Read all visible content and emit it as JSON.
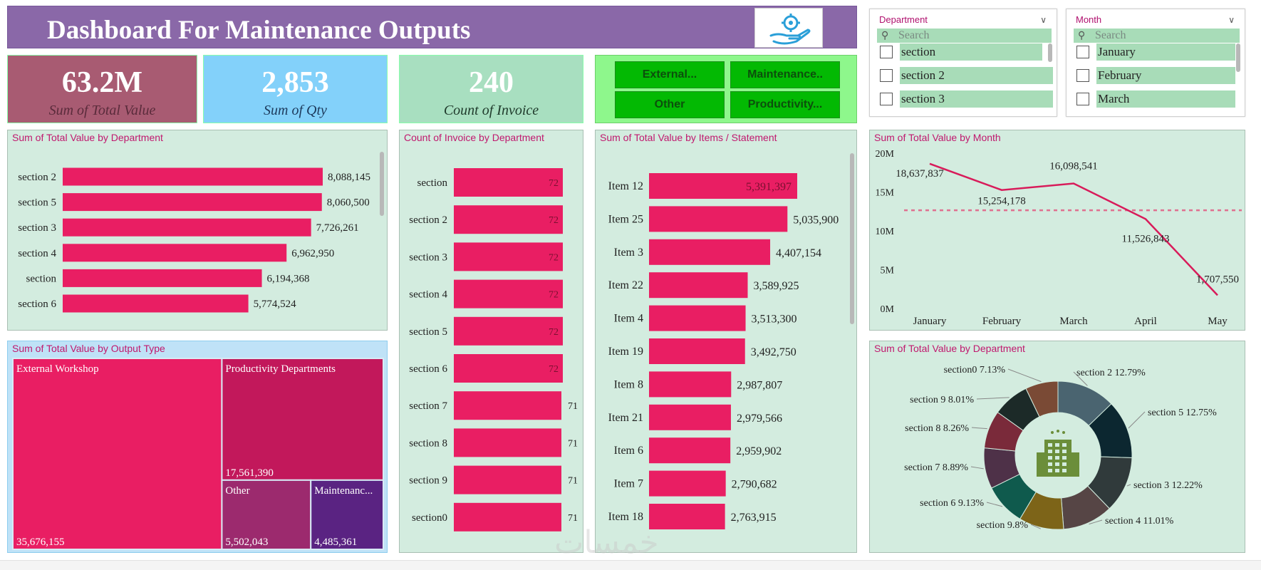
{
  "header": {
    "title": "Dashboard For Maintenance Outputs",
    "logo": "hand-gear-icon"
  },
  "kpis": [
    {
      "value": "63.2M",
      "label": "Sum of Total Value",
      "bg": "#a85b72",
      "label_color": "#5a2b3b"
    },
    {
      "value": "2,853",
      "label": "Sum of Qty",
      "bg": "#83d1fa",
      "label_color": "#1d3a5c"
    },
    {
      "value": "240",
      "label": "Count of Invoice",
      "bg": "#a8dfc0",
      "label_color": "#1f3a2b"
    }
  ],
  "output_buttons": [
    "External...",
    "Maintenance..",
    "Other",
    "Productivity..."
  ],
  "department_slicer": {
    "title": "Department",
    "search_placeholder": "Search",
    "options": [
      "section",
      "section 2",
      "section 3"
    ]
  },
  "month_slicer": {
    "title": "Month",
    "search_placeholder": "Search",
    "options": [
      "January",
      "February",
      "March"
    ]
  },
  "colors": {
    "bar": "#e91e63",
    "panel_bg": "#d3ecdf",
    "title_pink": "#c0186e",
    "header": "#8a68a8"
  },
  "chart_data": [
    {
      "id": "dept_value",
      "type": "bar",
      "orientation": "horizontal",
      "title": "Sum of Total Value by Department",
      "categories": [
        "section 2",
        "section 5",
        "section 3",
        "section 4",
        "section",
        "section 6"
      ],
      "values": [
        8088145,
        8060500,
        7726261,
        6962950,
        6194368,
        5774524
      ],
      "labels": [
        "8,088,145",
        "8,060,500",
        "7,726,261",
        "6,962,950",
        "6,194,368",
        "5,774,524"
      ]
    },
    {
      "id": "invoice_count",
      "type": "bar",
      "orientation": "horizontal",
      "title": "Count of Invoice by Department",
      "categories": [
        "section",
        "section 2",
        "section 3",
        "section 4",
        "section 5",
        "section 6",
        "section 7",
        "section 8",
        "section 9",
        "section0"
      ],
      "values": [
        72,
        72,
        72,
        72,
        72,
        72,
        71,
        71,
        71,
        71
      ],
      "labels": [
        "72",
        "72",
        "72",
        "72",
        "72",
        "72",
        "71",
        "71",
        "71",
        "71"
      ]
    },
    {
      "id": "items_value",
      "type": "bar",
      "orientation": "horizontal",
      "title": "Sum of Total Value by Items / Statement",
      "categories": [
        "Item 12",
        "Item 25",
        "Item 3",
        "Item 22",
        "Item 4",
        "Item 19",
        "Item 8",
        "Item 21",
        "Item 6",
        "Item 7",
        "Item 18"
      ],
      "values": [
        5391397,
        5035900,
        4407154,
        3589925,
        3513300,
        3492750,
        2987807,
        2979566,
        2959902,
        2790682,
        2763915
      ],
      "labels": [
        "5,391,397",
        "5,035,900",
        "4,407,154",
        "3,589,925",
        "3,513,300",
        "3,492,750",
        "2,987,807",
        "2,979,566",
        "2,959,902",
        "2,790,682",
        "2,763,915"
      ]
    },
    {
      "id": "month_value",
      "type": "line",
      "title": "Sum of Total Value by Month",
      "categories": [
        "January",
        "February",
        "March",
        "April",
        "May"
      ],
      "values": [
        18637837,
        15254178,
        16098541,
        11526843,
        1707550
      ],
      "labels": [
        "18,637,837",
        "15,254,178",
        "16,098,541",
        "11,526,843",
        "1,707,550"
      ],
      "average": 12644990,
      "ylim": [
        0,
        20000000
      ],
      "yticks": [
        0,
        5000000,
        10000000,
        15000000,
        20000000
      ],
      "ytick_labels": [
        "0M",
        "5M",
        "10M",
        "15M",
        "20M"
      ]
    },
    {
      "id": "output_type",
      "type": "treemap",
      "title": "Sum of Total Value by Output Type",
      "categories": [
        "External Workshop",
        "Productivity Departments",
        "Other",
        "Maintenanc..."
      ],
      "values": [
        35676155,
        17561390,
        5502043,
        4485361
      ],
      "labels": [
        "35,676,155",
        "17,561,390",
        "5,502,043",
        "4,485,361"
      ],
      "colors": [
        "#e91e63",
        "#c2185b",
        "#9c2a6e",
        "#5a2382"
      ]
    },
    {
      "id": "dept_donut",
      "type": "pie",
      "style": "donut",
      "title": "Sum of Total Value by Department",
      "categories": [
        "section 2",
        "section 5",
        "section 3",
        "section 4",
        "section",
        "section 6",
        "section 7",
        "section 8",
        "section 9",
        "section0"
      ],
      "values": [
        12.79,
        12.75,
        12.22,
        11.01,
        9.8,
        9.13,
        8.89,
        8.26,
        8.01,
        7.13
      ],
      "labels": [
        "section 2 12.79%",
        "section 5 12.75%",
        "section 3 12.22%",
        "section 4 11.01%",
        "section 9.8%",
        "section 6 9.13%",
        "section 7 8.89%",
        "section 8 8.26%",
        "section 9 8.01%",
        "section0 7.13%"
      ],
      "colors": [
        "#4a6470",
        "#0c2730",
        "#303a3b",
        "#564545",
        "#7d6418",
        "#0f5a4d",
        "#4e3148",
        "#7a2a3a",
        "#1c2a28",
        "#7a4a35"
      ],
      "center_icon": "building-icon"
    }
  ],
  "watermark": "خمسات"
}
